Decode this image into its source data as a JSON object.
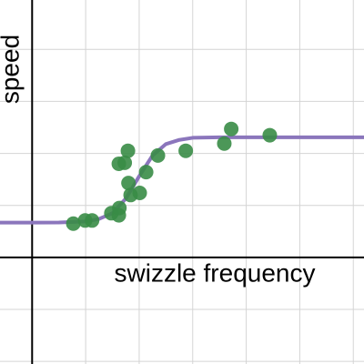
{
  "chart_data": {
    "type": "scatter",
    "x_label": "swizzle frequency",
    "y_label": "speed",
    "xlim": [
      -0.6,
      6.2
    ],
    "ylim": [
      -2.05,
      4.95
    ],
    "xticks": [
      0,
      1,
      2,
      3,
      4,
      5,
      6
    ],
    "yticks": [
      -2,
      -1,
      0,
      1,
      2,
      3,
      4
    ],
    "grid": true,
    "series": [
      {
        "type": "scatter",
        "color": "#388c46",
        "x": [
          0.77,
          0.99,
          1.12,
          1.48,
          1.62,
          1.63,
          1.62,
          1.73,
          1.79,
          1.8,
          1.84,
          2.01,
          2.13,
          2.35,
          2.87,
          3.59,
          3.72,
          4.44
        ],
        "values": [
          0.65,
          0.71,
          0.71,
          0.85,
          0.81,
          0.95,
          1.8,
          1.82,
          2.05,
          1.43,
          1.2,
          1.24,
          1.64,
          1.96,
          2.05,
          2.19,
          2.47,
          2.35
        ]
      },
      {
        "type": "line",
        "color": "#8b76bc",
        "x": [
          -0.6,
          0,
          0.5,
          1,
          1.25,
          1.5,
          1.75,
          2,
          2.25,
          2.5,
          2.75,
          3,
          3.5,
          4,
          5,
          6.2
        ],
        "values": [
          0.67,
          0.67,
          0.672,
          0.69,
          0.74,
          0.85,
          1.13,
          1.56,
          1.96,
          2.18,
          2.26,
          2.3,
          2.31,
          2.31,
          2.31,
          2.31
        ]
      }
    ]
  }
}
